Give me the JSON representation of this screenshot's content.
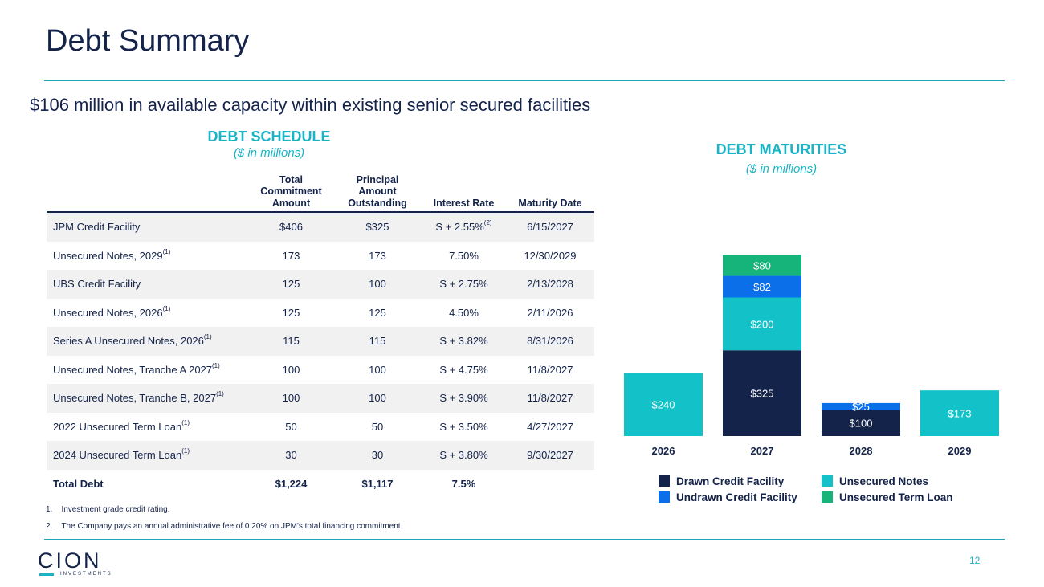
{
  "page": {
    "title": "Debt Summary",
    "subtitle": "$106 million in available capacity within existing senior secured facilities",
    "page_number": "12"
  },
  "schedule": {
    "title": "DEBT SCHEDULE",
    "units": "($ in millions)",
    "headers": [
      "",
      "Total Commitment Amount",
      "Principal Amount Outstanding",
      "Interest Rate",
      "Maturity Date"
    ],
    "rows": [
      {
        "name": "JPM Credit Facility",
        "sup": "",
        "commitment": "$406",
        "outstanding": "$325",
        "rate": "S + 2.55%",
        "rate_sup": "(2)",
        "maturity": "6/15/2027"
      },
      {
        "name": "Unsecured Notes, 2029",
        "sup": "(1)",
        "commitment": "173",
        "outstanding": "173",
        "rate": "7.50%",
        "rate_sup": "",
        "maturity": "12/30/2029"
      },
      {
        "name": "UBS Credit Facility",
        "sup": "",
        "commitment": "125",
        "outstanding": "100",
        "rate": "S + 2.75%",
        "rate_sup": "",
        "maturity": "2/13/2028"
      },
      {
        "name": "Unsecured Notes, 2026",
        "sup": "(1)",
        "commitment": "125",
        "outstanding": "125",
        "rate": "4.50%",
        "rate_sup": "",
        "maturity": "2/11/2026"
      },
      {
        "name": "Series A Unsecured Notes, 2026",
        "sup": "(1)",
        "commitment": "115",
        "outstanding": "115",
        "rate": "S + 3.82%",
        "rate_sup": "",
        "maturity": "8/31/2026"
      },
      {
        "name": "Unsecured Notes, Tranche A 2027",
        "sup": "(1)",
        "commitment": "100",
        "outstanding": "100",
        "rate": "S + 4.75%",
        "rate_sup": "",
        "maturity": "11/8/2027"
      },
      {
        "name": "Unsecured Notes, Tranche B, 2027",
        "sup": "(1)",
        "commitment": "100",
        "outstanding": "100",
        "rate": "S + 3.90%",
        "rate_sup": "",
        "maturity": "11/8/2027"
      },
      {
        "name": "2022 Unsecured Term Loan",
        "sup": "(1)",
        "commitment": "50",
        "outstanding": "50",
        "rate": "S + 3.50%",
        "rate_sup": "",
        "maturity": "4/27/2027"
      },
      {
        "name": "2024 Unsecured Term Loan",
        "sup": "(1)",
        "commitment": "30",
        "outstanding": "30",
        "rate": "S + 3.80%",
        "rate_sup": "",
        "maturity": "9/30/2027"
      }
    ],
    "total": {
      "name": "Total Debt",
      "commitment": "$1,224",
      "outstanding": "$1,117",
      "rate": "7.5%",
      "maturity": ""
    }
  },
  "footnotes": [
    "1.    Investment grade credit rating.",
    "2.    The Company pays an annual administrative fee of 0.20% on JPM's total financing commitment."
  ],
  "maturities": {
    "title": "DEBT MATURITIES",
    "units": "($ in millions)"
  },
  "logo": {
    "text": "CION",
    "sub": "INVESTMENTS"
  },
  "colors": {
    "navy": "#14234a",
    "teal": "#19b5c6",
    "drawn": "#14234a",
    "undrawn": "#0a6fe8",
    "unsecured_notes": "#12c2c8",
    "term_loan": "#16b37a"
  },
  "chart_data": {
    "type": "bar",
    "stacked": true,
    "categories": [
      "2026",
      "2027",
      "2028",
      "2029"
    ],
    "series": [
      {
        "name": "Drawn Credit Facility",
        "color": "#14234a",
        "values": [
          0,
          325,
          100,
          0
        ]
      },
      {
        "name": "Undrawn Credit Facility",
        "color": "#0a6fe8",
        "values": [
          0,
          82,
          25,
          0
        ]
      },
      {
        "name": "Unsecured Notes",
        "color": "#12c2c8",
        "values": [
          240,
          200,
          0,
          173
        ]
      },
      {
        "name": "Unsecured Term Loan",
        "color": "#16b37a",
        "values": [
          0,
          80,
          0,
          0
        ]
      }
    ],
    "stack_order": [
      "Drawn Credit Facility",
      "Unsecured Notes",
      "Undrawn Credit Facility",
      "Unsecured Term Loan"
    ],
    "data_labels": true,
    "label_prefix": "$",
    "ylim": [
      0,
      700
    ],
    "grid": false,
    "y_axis_visible": false,
    "legend_position": "bottom"
  }
}
